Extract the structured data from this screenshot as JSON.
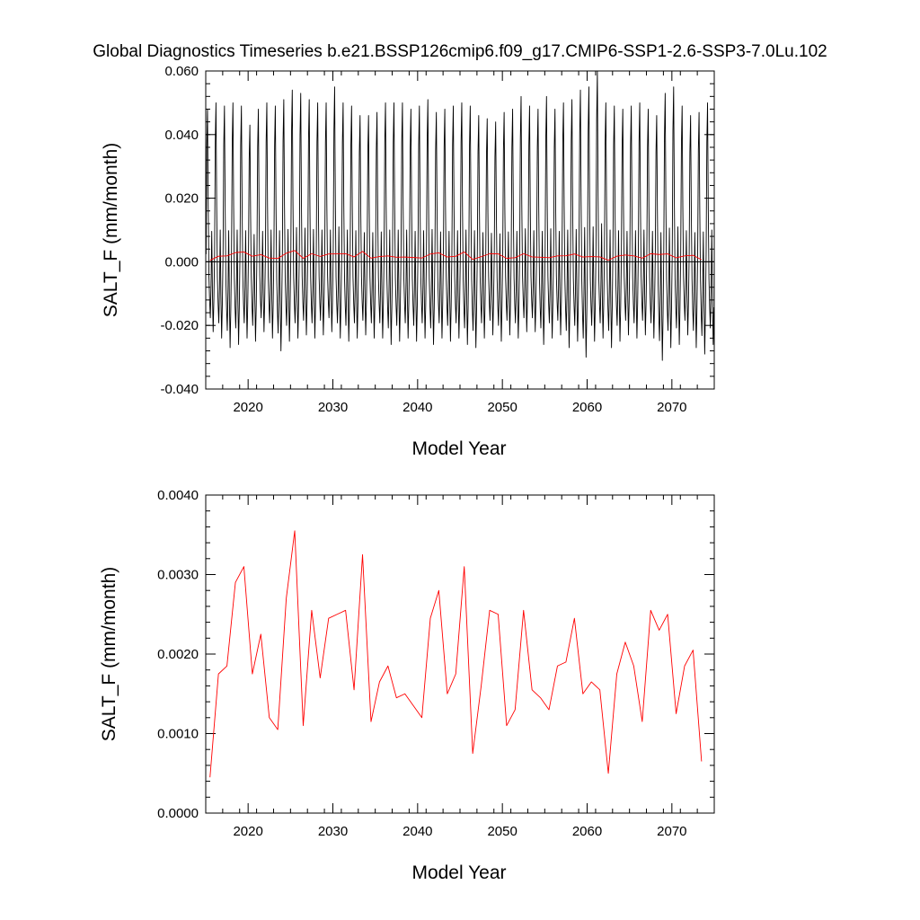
{
  "title": "Global Diagnostics Timeseries b.e21.BSSP126cmip6.f09_g17.CMIP6-SSP1-2.6-SSP3-7.0Lu.102",
  "colors": {
    "monthly": "#000000",
    "annual": "#ff0000",
    "axes": "#000000"
  },
  "chart_data": [
    {
      "type": "line",
      "xlabel": "Model Year",
      "ylabel": "SALT_F (mm/month)",
      "xlim": [
        2015,
        2075
      ],
      "ylim": [
        -0.04,
        0.06
      ],
      "x_ticks": [
        2020,
        2030,
        2040,
        2050,
        2060,
        2070
      ],
      "x_tick_labels": [
        "2020",
        "2030",
        "2040",
        "2050",
        "2060",
        "2070"
      ],
      "y_ticks": [
        -0.04,
        -0.02,
        0.0,
        0.02,
        0.04,
        0.06
      ],
      "y_tick_labels": [
        "-0.040",
        "-0.020",
        "0.000",
        "0.020",
        "0.040",
        "0.060"
      ],
      "zero_line": true,
      "series": [
        {
          "color": "#000000",
          "kind": "monthly",
          "start_year": 2015,
          "annual_peaks": [
            0.048,
            0.05,
            0.049,
            0.05,
            0.049,
            0.043,
            0.048,
            0.05,
            0.049,
            0.051,
            0.054,
            0.053,
            0.051,
            0.05,
            0.05,
            0.055,
            0.05,
            0.049,
            0.046,
            0.046,
            0.047,
            0.05,
            0.05,
            0.05,
            0.048,
            0.049,
            0.051,
            0.047,
            0.048,
            0.049,
            0.05,
            0.049,
            0.046,
            0.045,
            0.044,
            0.047,
            0.048,
            0.052,
            0.049,
            0.048,
            0.052,
            0.048,
            0.05,
            0.051,
            0.054,
            0.055,
            0.06,
            0.05,
            0.049,
            0.048,
            0.049,
            0.05,
            0.048,
            0.046,
            0.053,
            0.055,
            0.049,
            0.046,
            0.047,
            0.05
          ],
          "annual_troughs": [
            -0.022,
            -0.024,
            -0.027,
            -0.026,
            -0.024,
            -0.025,
            -0.022,
            -0.024,
            -0.028,
            -0.025,
            -0.024,
            -0.023,
            -0.024,
            -0.023,
            -0.022,
            -0.024,
            -0.025,
            -0.024,
            -0.023,
            -0.024,
            -0.024,
            -0.026,
            -0.025,
            -0.024,
            -0.025,
            -0.024,
            -0.026,
            -0.024,
            -0.025,
            -0.024,
            -0.026,
            -0.027,
            -0.024,
            -0.023,
            -0.025,
            -0.023,
            -0.024,
            -0.022,
            -0.022,
            -0.026,
            -0.024,
            -0.023,
            -0.027,
            -0.025,
            -0.03,
            -0.025,
            -0.024,
            -0.027,
            -0.025,
            -0.023,
            -0.024,
            -0.023,
            -0.024,
            -0.031,
            -0.027,
            -0.026,
            -0.023,
            -0.027,
            -0.029,
            -0.026
          ]
        },
        {
          "color": "#ff0000",
          "kind": "annual",
          "x": [
            2015.5,
            2016.5,
            2017.5,
            2018.5,
            2019.5,
            2020.5,
            2021.5,
            2022.5,
            2023.5,
            2024.5,
            2025.5,
            2026.5,
            2027.5,
            2028.5,
            2029.5,
            2030.5,
            2031.5,
            2032.5,
            2033.5,
            2034.5,
            2035.5,
            2036.5,
            2037.5,
            2038.5,
            2039.5,
            2040.5,
            2041.5,
            2042.5,
            2043.5,
            2044.5,
            2045.5,
            2046.5,
            2047.5,
            2048.5,
            2049.5,
            2050.5,
            2051.5,
            2052.5,
            2053.5,
            2054.5,
            2055.5,
            2056.5,
            2057.5,
            2058.5,
            2059.5,
            2060.5,
            2061.5,
            2062.5,
            2063.5,
            2064.5,
            2065.5,
            2066.5,
            2067.5,
            2068.5,
            2069.5,
            2070.5,
            2071.5,
            2072.5,
            2073.5
          ],
          "values": [
            0.00045,
            0.00175,
            0.00185,
            0.0029,
            0.0031,
            0.00175,
            0.00225,
            0.0012,
            0.00105,
            0.0027,
            0.00355,
            0.0011,
            0.00255,
            0.0017,
            0.00245,
            0.0025,
            0.00255,
            0.00155,
            0.00325,
            0.00115,
            0.00165,
            0.00185,
            0.00145,
            0.0015,
            0.00135,
            0.0012,
            0.00245,
            0.0028,
            0.0015,
            0.00175,
            0.0031,
            0.00075,
            0.0016,
            0.00255,
            0.0025,
            0.0011,
            0.0013,
            0.00255,
            0.00155,
            0.00145,
            0.0013,
            0.00185,
            0.0019,
            0.00245,
            0.0015,
            0.00165,
            0.00155,
            0.0005,
            0.00175,
            0.00215,
            0.00185,
            0.00115,
            0.00255,
            0.0023,
            0.0025,
            0.00125,
            0.00185,
            0.00205,
            0.00065
          ]
        }
      ]
    },
    {
      "type": "line",
      "xlabel": "Model Year",
      "ylabel": "SALT_F (mm/month)",
      "xlim": [
        2015,
        2075
      ],
      "ylim": [
        0.0,
        0.004
      ],
      "x_ticks": [
        2020,
        2030,
        2040,
        2050,
        2060,
        2070
      ],
      "x_tick_labels": [
        "2020",
        "2030",
        "2040",
        "2050",
        "2060",
        "2070"
      ],
      "y_ticks": [
        0.0,
        0.001,
        0.002,
        0.003,
        0.004
      ],
      "y_tick_labels": [
        "0.0000",
        "0.0010",
        "0.0020",
        "0.0030",
        "0.0040"
      ],
      "series": [
        {
          "color": "#ff0000",
          "kind": "annual",
          "x": [
            2015.5,
            2016.5,
            2017.5,
            2018.5,
            2019.5,
            2020.5,
            2021.5,
            2022.5,
            2023.5,
            2024.5,
            2025.5,
            2026.5,
            2027.5,
            2028.5,
            2029.5,
            2030.5,
            2031.5,
            2032.5,
            2033.5,
            2034.5,
            2035.5,
            2036.5,
            2037.5,
            2038.5,
            2039.5,
            2040.5,
            2041.5,
            2042.5,
            2043.5,
            2044.5,
            2045.5,
            2046.5,
            2047.5,
            2048.5,
            2049.5,
            2050.5,
            2051.5,
            2052.5,
            2053.5,
            2054.5,
            2055.5,
            2056.5,
            2057.5,
            2058.5,
            2059.5,
            2060.5,
            2061.5,
            2062.5,
            2063.5,
            2064.5,
            2065.5,
            2066.5,
            2067.5,
            2068.5,
            2069.5,
            2070.5,
            2071.5,
            2072.5,
            2073.5
          ],
          "values": [
            0.00045,
            0.00175,
            0.00185,
            0.0029,
            0.0031,
            0.00175,
            0.00225,
            0.0012,
            0.00105,
            0.0027,
            0.00355,
            0.0011,
            0.00255,
            0.0017,
            0.00245,
            0.0025,
            0.00255,
            0.00155,
            0.00325,
            0.00115,
            0.00165,
            0.00185,
            0.00145,
            0.0015,
            0.00135,
            0.0012,
            0.00245,
            0.0028,
            0.0015,
            0.00175,
            0.0031,
            0.00075,
            0.0016,
            0.00255,
            0.0025,
            0.0011,
            0.0013,
            0.00255,
            0.00155,
            0.00145,
            0.0013,
            0.00185,
            0.0019,
            0.00245,
            0.0015,
            0.00165,
            0.00155,
            0.0005,
            0.00175,
            0.00215,
            0.00185,
            0.00115,
            0.00255,
            0.0023,
            0.0025,
            0.00125,
            0.00185,
            0.00205,
            0.00065
          ]
        }
      ]
    }
  ]
}
